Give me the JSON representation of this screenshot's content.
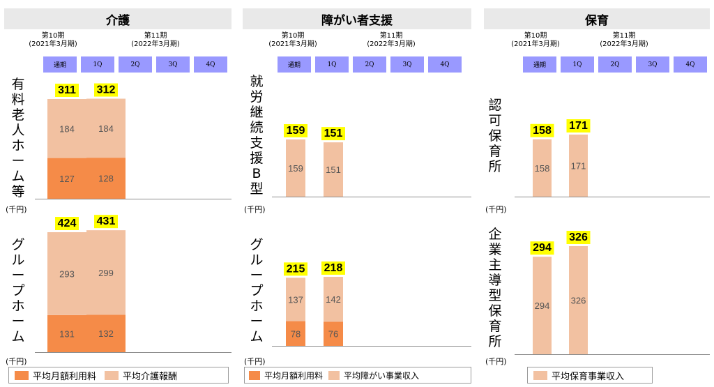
{
  "colors": {
    "fee": "#f58b48",
    "reward": "#f2c1a1",
    "total_highlight": "#ffff00",
    "quarter_box": "#9999ff",
    "header_bg": "#e9e9e9"
  },
  "period_10": "第10期",
  "period_10_sub": "(2021年3月期)",
  "period_11": "第11期",
  "period_11_sub": "(2022年3月期)",
  "quarters": [
    "通期",
    "1Q",
    "2Q",
    "3Q",
    "4Q"
  ],
  "unit": "(千円)",
  "sections": [
    {
      "title": "介護",
      "rows": [
        {
          "label": "有料老人ホーム等",
          "chart_data": {
            "type": "bar",
            "stacked": true,
            "categories": [
              "通期",
              "1Q"
            ],
            "series": [
              {
                "name": "平均月額利用料",
                "values": [
                  127,
                  128
                ]
              },
              {
                "name": "平均介護報酬",
                "values": [
                  184,
                  184
                ]
              }
            ],
            "totals": [
              311,
              312
            ]
          }
        },
        {
          "label": "グループホーム",
          "chart_data": {
            "type": "bar",
            "stacked": true,
            "categories": [
              "通期",
              "1Q"
            ],
            "series": [
              {
                "name": "平均月額利用料",
                "values": [
                  131,
                  132
                ]
              },
              {
                "name": "平均介護報酬",
                "values": [
                  293,
                  299
                ]
              }
            ],
            "totals": [
              424,
              431
            ]
          }
        }
      ],
      "legend": [
        "平均月額利用料",
        "平均介護報酬"
      ]
    },
    {
      "title": "障がい者支援",
      "rows": [
        {
          "label": "就労継続支援B型",
          "chart_data": {
            "type": "bar",
            "stacked": true,
            "categories": [
              "通期",
              "1Q"
            ],
            "series": [
              {
                "name": "平均障がい事業収入",
                "values": [
                  159,
                  151
                ]
              }
            ],
            "totals": [
              159,
              151
            ]
          }
        },
        {
          "label": "グループホーム",
          "chart_data": {
            "type": "bar",
            "stacked": true,
            "categories": [
              "通期",
              "1Q"
            ],
            "series": [
              {
                "name": "平均月額利用料",
                "values": [
                  78,
                  76
                ]
              },
              {
                "name": "平均障がい事業収入",
                "values": [
                  137,
                  142
                ]
              }
            ],
            "totals": [
              215,
              218
            ]
          }
        }
      ],
      "legend": [
        "平均月額利用料",
        "平均障がい事業収入"
      ]
    },
    {
      "title": "保育",
      "rows": [
        {
          "label": "認可保育所",
          "chart_data": {
            "type": "bar",
            "stacked": true,
            "categories": [
              "通期",
              "1Q"
            ],
            "series": [
              {
                "name": "平均保育事業収入",
                "values": [
                  158,
                  171
                ]
              }
            ],
            "totals": [
              158,
              171
            ]
          }
        },
        {
          "label": "企業主導型保育所",
          "chart_data": {
            "type": "bar",
            "stacked": true,
            "categories": [
              "通期",
              "1Q"
            ],
            "series": [
              {
                "name": "平均保育事業収入",
                "values": [
                  294,
                  326
                ]
              }
            ],
            "totals": [
              294,
              326
            ]
          }
        }
      ],
      "legend": [
        "平均保育事業収入"
      ]
    }
  ]
}
